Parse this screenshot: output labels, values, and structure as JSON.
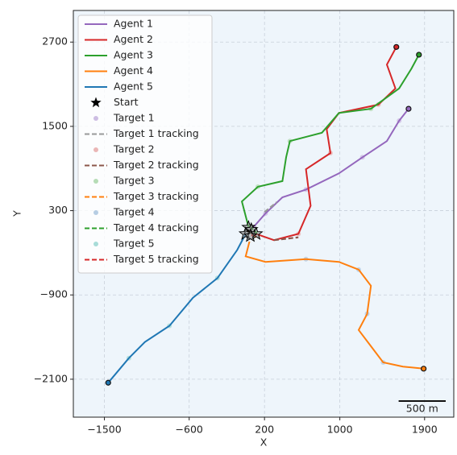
{
  "chart_data": {
    "type": "trajectory",
    "xlabel": "X",
    "ylabel": "Y",
    "xlim": [
      -1830,
      2210
    ],
    "ylim": [
      -2640,
      3150
    ],
    "xticks": [
      {
        "value": -1500,
        "label": "−1500"
      },
      {
        "value": -600,
        "label": "−600"
      },
      200,
      1000,
      1900
    ],
    "yticks": [
      2700,
      1500,
      300,
      {
        "value": -900,
        "label": "−900"
      },
      {
        "value": -2100,
        "label": "−2100"
      }
    ],
    "grid": true,
    "legend": "upper left",
    "scalebar": {
      "label": "500 m",
      "length": 500
    },
    "series": [
      {
        "name": "Agent 1",
        "color": "#9467bd",
        "style": "line",
        "x": [
          60,
          210,
          390,
          640,
          990,
          1240,
          1500,
          1630,
          1730
        ],
        "y": [
          30,
          260,
          490,
          600,
          830,
          1060,
          1290,
          1580,
          1750
        ]
      },
      {
        "name": "Agent 2",
        "color": "#d62728",
        "style": "line",
        "x": [
          110,
          300,
          560,
          690,
          640,
          900,
          860,
          990,
          1410,
          1590,
          1500,
          1600
        ],
        "y": [
          -30,
          -120,
          -30,
          370,
          890,
          1120,
          1460,
          1690,
          1810,
          2040,
          2380,
          2630
        ]
      },
      {
        "name": "Agent 3",
        "color": "#2ca02c",
        "style": "line",
        "x": [
          30,
          -40,
          130,
          390,
          430,
          470,
          810,
          990,
          1330,
          1630,
          1760,
          1840
        ],
        "y": [
          70,
          430,
          640,
          720,
          1060,
          1290,
          1410,
          1690,
          1750,
          2040,
          2320,
          2520
        ]
      },
      {
        "name": "Agent 4",
        "color": "#ff7f0e",
        "style": "line",
        "x": [
          40,
          0,
          210,
          640,
          990,
          1200,
          1330,
          1290,
          1200,
          1330,
          1460,
          1670,
          1890
        ],
        "y": [
          -140,
          -350,
          -430,
          -390,
          -430,
          -540,
          -770,
          -1170,
          -1400,
          -1630,
          -1860,
          -1920,
          -1950
        ]
      },
      {
        "name": "Agent 5",
        "color": "#1f77b4",
        "style": "line",
        "x": [
          0,
          -90,
          -300,
          -560,
          -810,
          -1070,
          -1240,
          -1460
        ],
        "y": [
          -30,
          -260,
          -660,
          -940,
          -1340,
          -1570,
          -1800,
          -2150
        ]
      },
      {
        "name": "Start",
        "color": "#000000",
        "style": "star",
        "x": [
          30,
          60,
          110,
          0,
          50
        ],
        "y": [
          60,
          30,
          -30,
          -30,
          -60
        ]
      },
      {
        "name": "Target 1",
        "color": "#cdbde3",
        "style": "dots",
        "x": [
          210,
          640,
          1240,
          1630
        ],
        "y": [
          260,
          600,
          1060,
          1580
        ]
      },
      {
        "name": "Target 1 tracking",
        "color": "#999999",
        "style": "dashed",
        "x": [
          200,
          330
        ],
        "y": [
          280,
          420
        ]
      },
      {
        "name": "Target 2",
        "color": "#eab6b6",
        "style": "dots",
        "x": [
          560,
          900,
          1410,
          1600
        ],
        "y": [
          -30,
          1120,
          1810,
          2630
        ]
      },
      {
        "name": "Target 2 tracking",
        "color": "#8c564b",
        "style": "dashed",
        "x": [
          300,
          560
        ],
        "y": [
          -120,
          -80
        ]
      },
      {
        "name": "Target 3",
        "color": "#b6dcb6",
        "style": "dots",
        "x": [
          130,
          470,
          1330,
          1840
        ],
        "y": [
          640,
          1290,
          1750,
          2520
        ]
      },
      {
        "name": "Target 3 tracking",
        "color": "#ff7f0e",
        "style": "dashed",
        "x": [
          20,
          110
        ],
        "y": [
          20,
          -80
        ]
      },
      {
        "name": "Target 4",
        "color": "#b6cde3",
        "style": "dots",
        "x": [
          640,
          1200,
          1290,
          1460
        ],
        "y": [
          -390,
          -540,
          -1170,
          -1860
        ]
      },
      {
        "name": "Target 4 tracking",
        "color": "#2ca02c",
        "style": "dashed",
        "x": [
          40,
          120
        ],
        "y": [
          80,
          -20
        ]
      },
      {
        "name": "Target 5",
        "color": "#a8dcd8",
        "style": "dots",
        "x": [
          -300,
          -810,
          -1240
        ],
        "y": [
          -660,
          -1340,
          -1800
        ]
      },
      {
        "name": "Target 5 tracking",
        "color": "#d62728",
        "style": "dashed",
        "x": [
          60,
          140
        ],
        "y": [
          -50,
          -60
        ]
      }
    ]
  }
}
